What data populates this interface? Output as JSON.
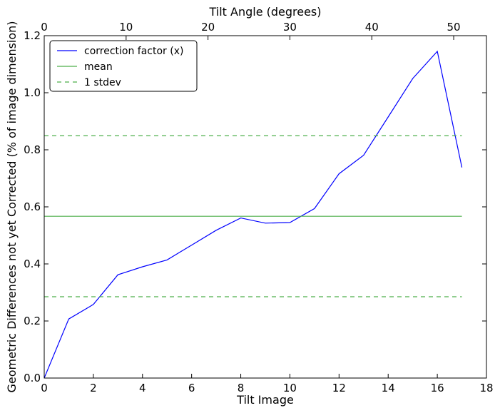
{
  "chart_data": {
    "type": "line",
    "xlabel": "Tilt Image",
    "ylabel": "Geometric Differences not yet Corrected (% of image dimension)",
    "x2label": "Tilt Angle (degrees)",
    "xlim": [
      0,
      18
    ],
    "ylim": [
      0,
      1.2
    ],
    "x2lim": [
      0,
      54
    ],
    "x_ticks": [
      0,
      2,
      4,
      6,
      8,
      10,
      12,
      14,
      16,
      18
    ],
    "y_ticks": [
      "0.0",
      "0.2",
      "0.4",
      "0.6",
      "0.8",
      "1.0",
      "1.2"
    ],
    "x2_ticks": [
      0,
      10,
      20,
      30,
      40,
      50
    ],
    "grid": false,
    "legend_position": "top-left",
    "series": [
      {
        "name": "correction factor (x)",
        "color": "#0000ff",
        "style": "solid",
        "x": [
          0,
          1,
          2,
          3,
          4,
          5,
          6,
          7,
          8,
          9,
          10,
          11,
          12,
          13,
          14,
          15,
          16,
          17
        ],
        "values": [
          0.0,
          0.207,
          0.258,
          0.362,
          0.39,
          0.414,
          0.466,
          0.518,
          0.561,
          0.543,
          0.545,
          0.594,
          0.716,
          0.781,
          0.915,
          1.05,
          1.145,
          0.738
        ]
      },
      {
        "name": "mean",
        "color": "#4daf4a",
        "style": "solid",
        "x": [
          0,
          17
        ],
        "values": [
          0.567,
          0.567
        ]
      },
      {
        "name": "1 stdev",
        "color": "#4daf4a",
        "style": "dashed",
        "x": [
          0,
          17
        ],
        "values": [
          0.849,
          0.849
        ]
      },
      {
        "name": "",
        "color": "#4daf4a",
        "style": "dashed",
        "x": [
          0,
          17
        ],
        "values": [
          0.285,
          0.285
        ]
      }
    ]
  }
}
